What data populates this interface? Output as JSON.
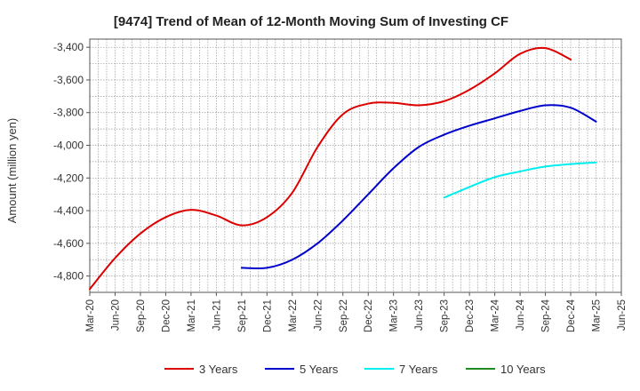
{
  "chart_data": {
    "type": "line",
    "title": "[9474]  Trend of Mean of 12-Month Moving Sum of Investing CF",
    "xlabel": "",
    "ylabel": "Amount (million yen)",
    "ylim": [
      -4900,
      -3350
    ],
    "yticks": [
      -3400,
      -3600,
      -3800,
      -4000,
      -4200,
      -4400,
      -4600,
      -4800
    ],
    "ytick_labels": [
      "-3,400",
      "-3,600",
      "-3,800",
      "-4,000",
      "-4,200",
      "-4,400",
      "-4,600",
      "-4,800"
    ],
    "categories": [
      "Mar-20",
      "Jun-20",
      "Sep-20",
      "Dec-20",
      "Mar-21",
      "Jun-21",
      "Sep-21",
      "Dec-21",
      "Mar-22",
      "Jun-22",
      "Sep-22",
      "Dec-22",
      "Mar-23",
      "Jun-23",
      "Sep-23",
      "Dec-23",
      "Mar-24",
      "Jun-24",
      "Sep-24",
      "Dec-24",
      "Mar-25",
      "Jun-25"
    ],
    "grid": true,
    "legend_position": "bottom",
    "series": [
      {
        "name": "3 Years",
        "color": "#dd0000",
        "values": [
          -4880,
          -4690,
          -4540,
          -4440,
          -4395,
          -4430,
          -4490,
          -4440,
          -4290,
          -4010,
          -3810,
          -3745,
          -3740,
          -3755,
          -3730,
          -3660,
          -3560,
          -3440,
          -3405,
          -3475,
          null,
          null
        ]
      },
      {
        "name": "5 Years",
        "color": "#0000cc",
        "values": [
          null,
          null,
          null,
          null,
          null,
          null,
          -4750,
          -4750,
          -4700,
          -4600,
          -4460,
          -4300,
          -4140,
          -4010,
          -3935,
          -3880,
          -3835,
          -3790,
          -3755,
          -3770,
          -3855,
          null
        ]
      },
      {
        "name": "7 Years",
        "color": "#00eeee",
        "values": [
          null,
          null,
          null,
          null,
          null,
          null,
          null,
          null,
          null,
          null,
          null,
          null,
          null,
          null,
          -4320,
          -4255,
          -4195,
          -4160,
          -4130,
          -4115,
          -4105,
          null
        ]
      },
      {
        "name": "10 Years",
        "color": "#228b22",
        "values": [
          null,
          null,
          null,
          null,
          null,
          null,
          null,
          null,
          null,
          null,
          null,
          null,
          null,
          null,
          null,
          null,
          null,
          null,
          null,
          null,
          null,
          null
        ]
      }
    ]
  }
}
